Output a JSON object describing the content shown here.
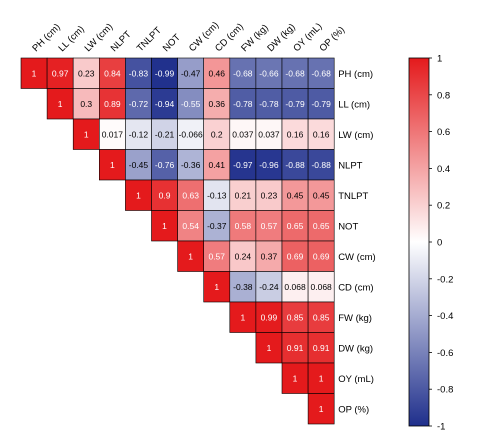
{
  "chart_data": {
    "type": "heatmap",
    "variables": [
      "PH (cm)",
      "LL (cm)",
      "LW (cm)",
      "NLPT",
      "TNLPT",
      "NOT",
      "CW (cm)",
      "CD (cm)",
      "FW (kg)",
      "DW (kg)",
      "OY (mL)",
      "OP (%)"
    ],
    "matrix_upper": [
      [
        "1",
        "0.97",
        "0.23",
        "0.84",
        "-0.83",
        "-0.99",
        "-0.47",
        "0.46",
        "-0.68",
        "-0.66",
        "-0.68",
        "-0.68"
      ],
      [
        "1",
        "0.3",
        "0.89",
        "-0.72",
        "-0.94",
        "-0.55",
        "0.36",
        "-0.78",
        "-0.78",
        "-0.79",
        "-0.79"
      ],
      [
        "1",
        "0.017",
        "-0.12",
        "-0.21",
        "-0.066",
        "0.2",
        "0.037",
        "0.037",
        "0.16",
        "0.16"
      ],
      [
        "1",
        "-0.45",
        "-0.76",
        "-0.36",
        "0.41",
        "-0.97",
        "-0.96",
        "-0.88",
        "-0.88"
      ],
      [
        "1",
        "0.9",
        "0.63",
        "-0.13",
        "0.21",
        "0.23",
        "0.45",
        "0.45"
      ],
      [
        "1",
        "0.54",
        "-0.37",
        "0.58",
        "0.57",
        "0.65",
        "0.65"
      ],
      [
        "1",
        "0.57",
        "0.24",
        "0.37",
        "0.69",
        "0.69"
      ],
      [
        "1",
        "-0.38",
        "-0.24",
        "0.068",
        "0.068"
      ],
      [
        "1",
        "0.99",
        "0.85",
        "0.85"
      ],
      [
        "1",
        "0.91",
        "0.91"
      ],
      [
        "1",
        "1"
      ],
      [
        "1"
      ]
    ],
    "colorbar": {
      "range": [
        -1,
        1
      ],
      "ticks": [
        "1",
        "0.8",
        "0.6",
        "0.4",
        "0.2",
        "0",
        "-0.2",
        "-0.4",
        "-0.6",
        "-0.8",
        "-1"
      ],
      "colors": {
        "low": "#1f2f8c",
        "mid": "#ffffff",
        "high": "#e41a1c"
      }
    }
  }
}
